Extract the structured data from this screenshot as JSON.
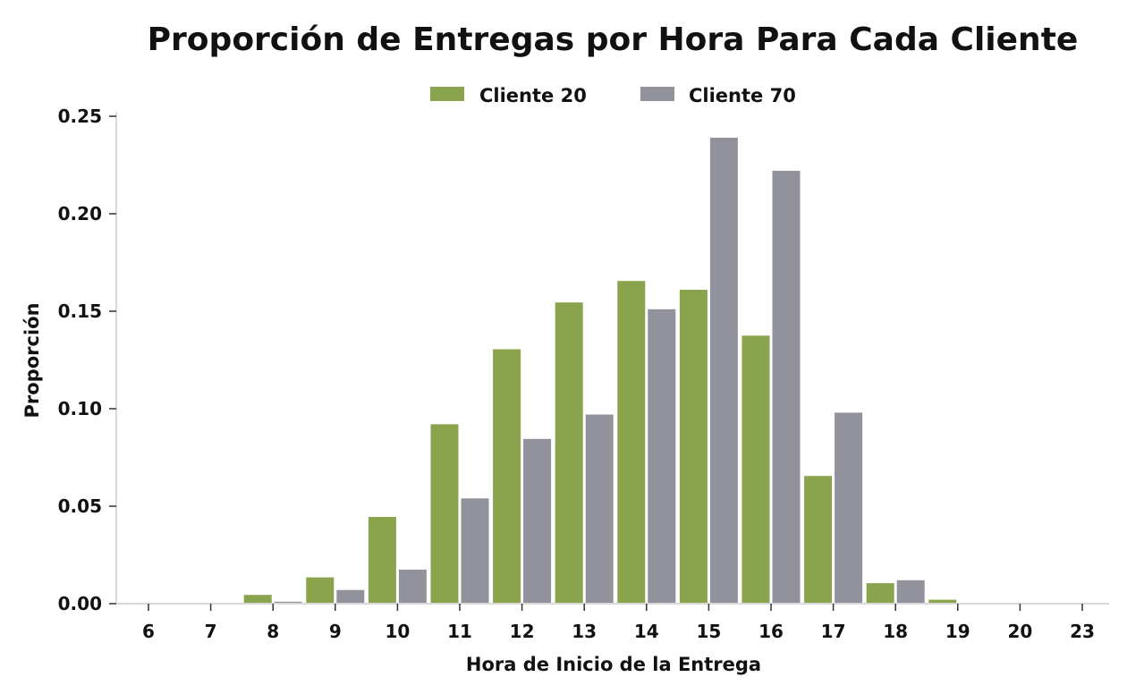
{
  "chart_data": {
    "type": "bar",
    "title": "Proporción de Entregas por Hora Para Cada Cliente",
    "xlabel": "Hora de Inicio de la Entrega",
    "ylabel": "Proporción",
    "categories": [
      "6",
      "7",
      "8",
      "9",
      "10",
      "11",
      "12",
      "13",
      "14",
      "15",
      "16",
      "17",
      "18",
      "19",
      "20",
      "23"
    ],
    "series": [
      {
        "name": "Cliente 20",
        "color": "#8aa44e",
        "values": [
          0,
          0,
          0.0045,
          0.0135,
          0.0445,
          0.092,
          0.1305,
          0.1545,
          0.1655,
          0.161,
          0.1375,
          0.0655,
          0.0105,
          0.002,
          0,
          0
        ]
      },
      {
        "name": "Cliente 70",
        "color": "#92929c",
        "values": [
          0,
          0,
          0.001,
          0.007,
          0.0175,
          0.054,
          0.0845,
          0.097,
          0.151,
          0.239,
          0.222,
          0.098,
          0.012,
          0,
          0,
          0
        ]
      }
    ],
    "ylim": [
      0,
      0.25
    ],
    "yticks": [
      "0.00",
      "0.05",
      "0.10",
      "0.15",
      "0.20",
      "0.25"
    ],
    "legend_position": "top-center",
    "grid": false
  }
}
